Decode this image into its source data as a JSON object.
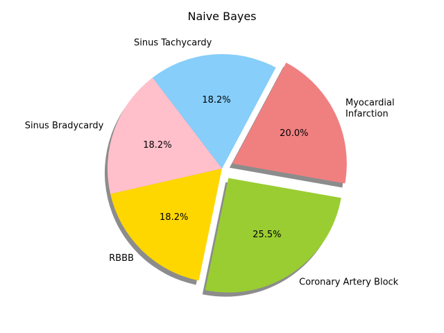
{
  "chart_data": {
    "type": "pie",
    "title": "Naive Bayes",
    "categories": [
      "Myocardial Infarction",
      "Sinus Tachycardy",
      "Sinus Bradycardy",
      "RBBB",
      "Coronary Artery Block"
    ],
    "label_lines": [
      [
        "Myocardial",
        "Infarction"
      ],
      [
        "Sinus Tachycardy"
      ],
      [
        "Sinus Bradycardy"
      ],
      [
        "RBBB"
      ],
      [
        "Coronary Artery Block"
      ]
    ],
    "values": [
      20.0,
      18.2,
      18.2,
      18.2,
      25.5
    ],
    "value_labels": [
      "20.0%",
      "18.2%",
      "18.2%",
      "18.2%",
      "25.5%"
    ],
    "colors": [
      "#F08080",
      "#87CEFA",
      "#FFC0CB",
      "#FFD700",
      "#9ACD32"
    ],
    "exploded": [
      true,
      false,
      false,
      false,
      true
    ],
    "shadow": true
  }
}
